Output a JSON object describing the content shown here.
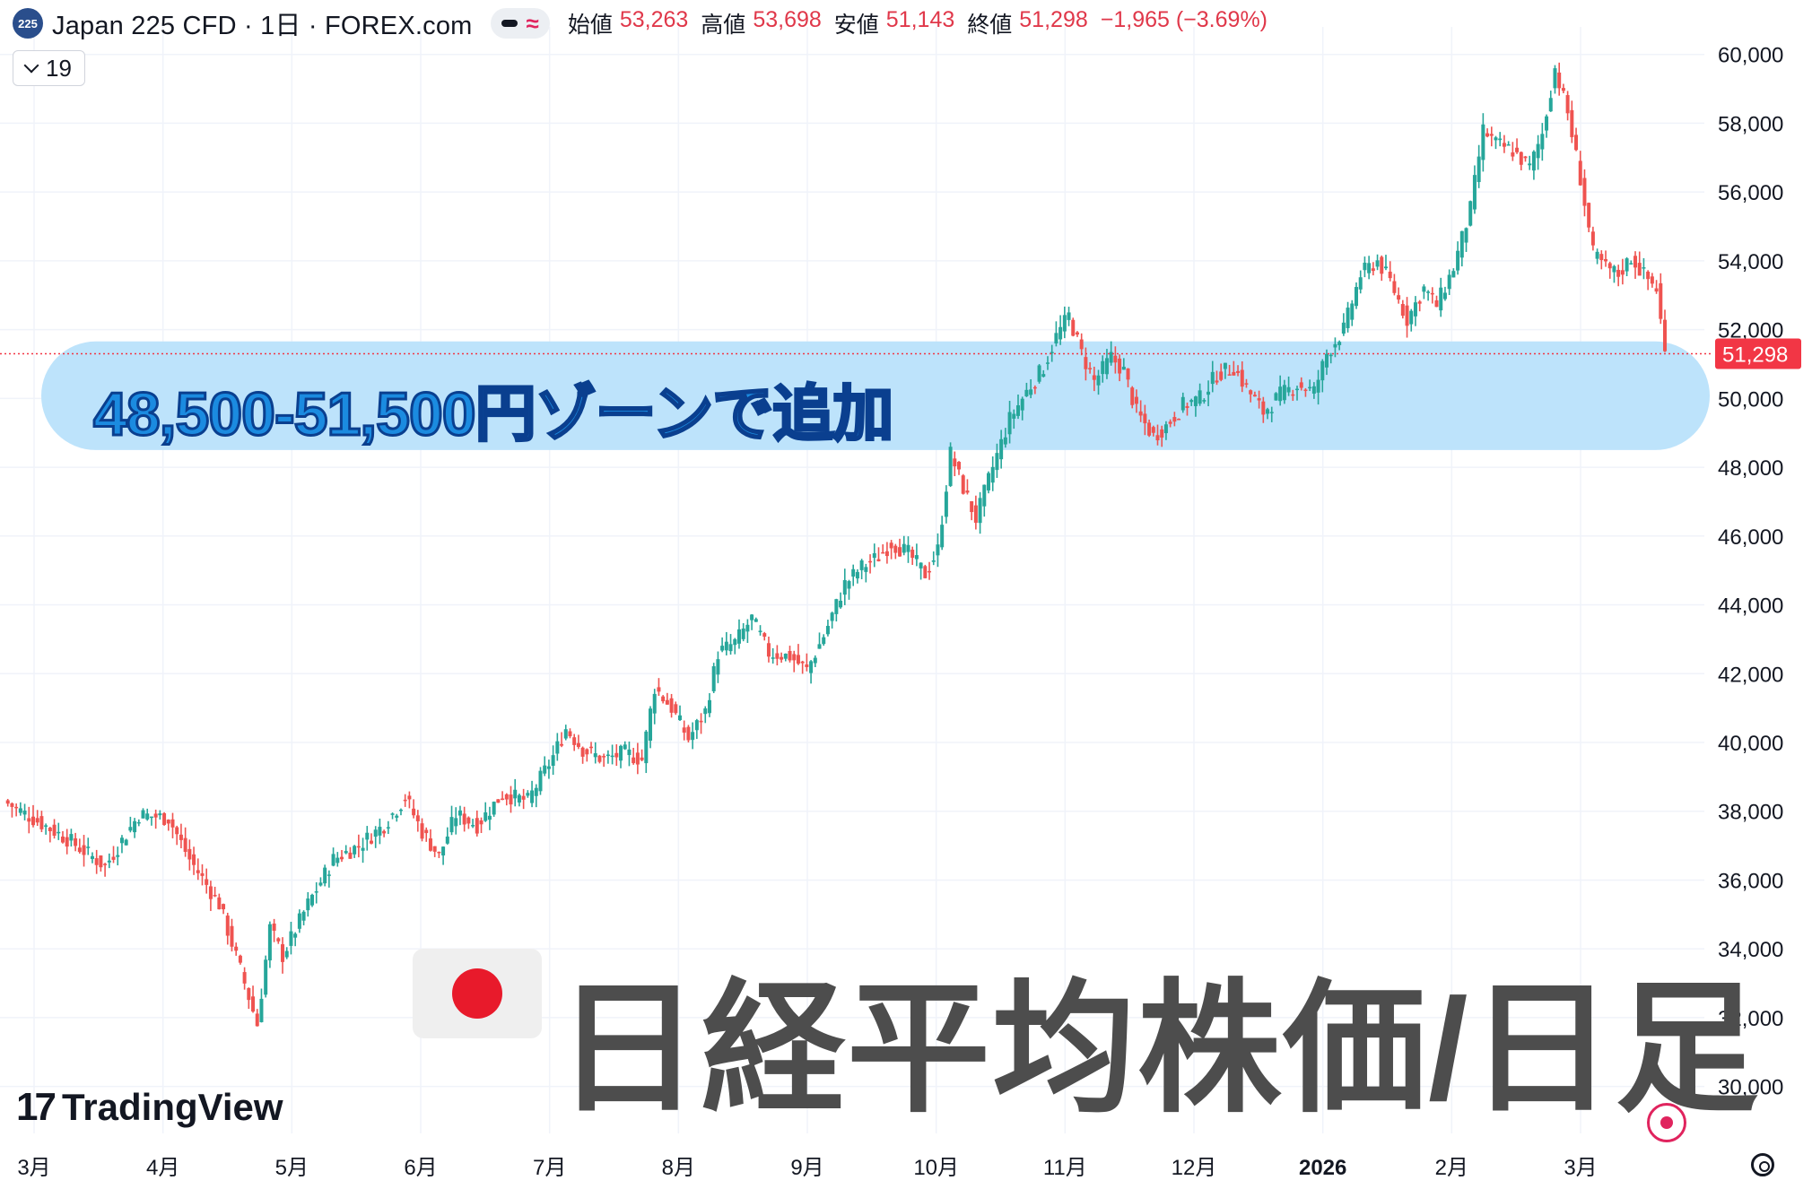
{
  "header": {
    "symbol_badge": "225",
    "title": "Japan 225 CFD · 1日 · FOREX.com",
    "approx_icon": "≈",
    "ohlc": {
      "open_label": "始値",
      "open": "53,263",
      "high_label": "高値",
      "high": "53,698",
      "low_label": "安値",
      "low": "51,143",
      "close_label": "終値",
      "close": "51,298",
      "change": "−1,965 (−3.69%)"
    }
  },
  "indicator": {
    "value": "19",
    "icon": "chevron-down-icon"
  },
  "annotation": {
    "zone_text": "48,500-51,500円ゾーンで追加"
  },
  "overlay_title": "日経平均株価/日足",
  "flag_icon": "japan-flag-icon",
  "branding": {
    "logo_mark": "17",
    "logo_text": "TradingView"
  },
  "colors": {
    "up": "#26a69a",
    "down": "#ef5350",
    "zone": "#bde3fb",
    "last_price": "#f23645"
  },
  "chart_data": {
    "type": "candlestick",
    "title": "",
    "ylim": [
      29000,
      60800
    ],
    "y_ticks": [
      30000,
      32000,
      34000,
      36000,
      38000,
      40000,
      42000,
      44000,
      46000,
      48000,
      50000,
      52000,
      54000,
      56000,
      58000,
      60000
    ],
    "y_tick_labels": [
      "30,000",
      "32,000",
      "34,000",
      "36,000",
      "38,000",
      "40,000",
      "42,000",
      "44,000",
      "46,000",
      "48,000",
      "50,000",
      "52,000",
      "54,000",
      "56,000",
      "58,000",
      "60,000"
    ],
    "x_ticks": [
      {
        "label": "3月",
        "bold": false
      },
      {
        "label": "4月",
        "bold": false
      },
      {
        "label": "5月",
        "bold": false
      },
      {
        "label": "6月",
        "bold": false
      },
      {
        "label": "7月",
        "bold": false
      },
      {
        "label": "8月",
        "bold": false
      },
      {
        "label": "9月",
        "bold": false
      },
      {
        "label": "10月",
        "bold": false
      },
      {
        "label": "11月",
        "bold": false
      },
      {
        "label": "12月",
        "bold": false
      },
      {
        "label": "2026",
        "bold": true
      },
      {
        "label": "2月",
        "bold": false
      },
      {
        "label": "3月",
        "bold": false
      }
    ],
    "last_price": 51298,
    "last_price_label": "51,298",
    "zone": [
      48500,
      51500
    ],
    "close_path": [
      [
        0,
        38300
      ],
      [
        15,
        37200
      ],
      [
        24,
        36400
      ],
      [
        32,
        37900
      ],
      [
        39,
        37800
      ],
      [
        44,
        36600
      ],
      [
        51,
        35300
      ],
      [
        56,
        33400
      ],
      [
        60,
        31800
      ],
      [
        63,
        34600
      ],
      [
        66,
        33800
      ],
      [
        72,
        35300
      ],
      [
        78,
        36600
      ],
      [
        84,
        37000
      ],
      [
        90,
        37600
      ],
      [
        95,
        38400
      ],
      [
        99,
        37400
      ],
      [
        103,
        36700
      ],
      [
        107,
        37900
      ],
      [
        112,
        37600
      ],
      [
        118,
        38500
      ],
      [
        124,
        38300
      ],
      [
        130,
        39600
      ],
      [
        133,
        40400
      ],
      [
        137,
        39800
      ],
      [
        142,
        39500
      ],
      [
        147,
        39700
      ],
      [
        151,
        39500
      ],
      [
        154,
        41600
      ],
      [
        158,
        41000
      ],
      [
        162,
        40100
      ],
      [
        166,
        40900
      ],
      [
        169,
        42600
      ],
      [
        173,
        42900
      ],
      [
        177,
        43600
      ],
      [
        181,
        42600
      ],
      [
        186,
        42500
      ],
      [
        190,
        42100
      ],
      [
        194,
        43100
      ],
      [
        199,
        44600
      ],
      [
        203,
        45100
      ],
      [
        207,
        45400
      ],
      [
        210,
        45800
      ],
      [
        214,
        45500
      ],
      [
        218,
        44900
      ],
      [
        221,
        45600
      ],
      [
        224,
        48400
      ],
      [
        227,
        47400
      ],
      [
        230,
        46500
      ],
      [
        234,
        48000
      ],
      [
        238,
        49400
      ],
      [
        242,
        50200
      ],
      [
        246,
        50900
      ],
      [
        249,
        51800
      ],
      [
        252,
        52400
      ],
      [
        255,
        51300
      ],
      [
        258,
        50500
      ],
      [
        262,
        51200
      ],
      [
        265,
        50800
      ],
      [
        268,
        49600
      ],
      [
        272,
        48900
      ],
      [
        275,
        49200
      ],
      [
        279,
        49800
      ],
      [
        283,
        50000
      ],
      [
        287,
        50700
      ],
      [
        291,
        50900
      ],
      [
        294,
        50300
      ],
      [
        298,
        49600
      ],
      [
        302,
        50100
      ],
      [
        306,
        50400
      ],
      [
        310,
        50200
      ],
      [
        313,
        51300
      ],
      [
        317,
        52000
      ],
      [
        321,
        53600
      ],
      [
        325,
        54000
      ],
      [
        328,
        53400
      ],
      [
        332,
        52300
      ],
      [
        336,
        53200
      ],
      [
        339,
        52700
      ],
      [
        343,
        53800
      ],
      [
        347,
        55500
      ],
      [
        350,
        57800
      ],
      [
        353,
        57400
      ],
      [
        357,
        57200
      ],
      [
        361,
        56700
      ],
      [
        364,
        57700
      ],
      [
        367,
        59600
      ],
      [
        370,
        58300
      ],
      [
        373,
        56400
      ],
      [
        376,
        54200
      ],
      [
        379,
        53800
      ],
      [
        382,
        53600
      ],
      [
        385,
        54100
      ],
      [
        388,
        53600
      ],
      [
        391,
        53200
      ],
      [
        393,
        51298
      ]
    ]
  }
}
